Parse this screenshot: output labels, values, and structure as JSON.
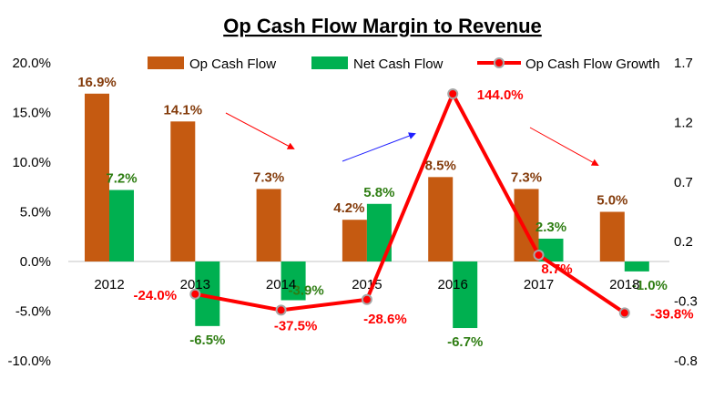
{
  "chart_data": {
    "type": "bar",
    "title": "Op Cash Flow Margin to Revenue",
    "categories": [
      "2012",
      "2013",
      "2014",
      "2015",
      "2016",
      "2017",
      "2018"
    ],
    "series": [
      {
        "name": "Op Cash Flow",
        "type": "bar",
        "axis": "left",
        "color": "#C55A11",
        "label_color": "#843C0C",
        "values": [
          16.9,
          14.1,
          7.3,
          4.2,
          8.5,
          7.3,
          5.0
        ],
        "labels": [
          "16.9%",
          "14.1%",
          "7.3%",
          "4.2%",
          "8.5%",
          "7.3%",
          "5.0%"
        ]
      },
      {
        "name": "Net Cash Flow",
        "type": "bar",
        "axis": "left",
        "color": "#00B050",
        "label_color": "#2E7D12",
        "values": [
          7.2,
          -6.5,
          -3.9,
          5.8,
          -6.7,
          2.3,
          -1.0
        ],
        "labels": [
          "7.2%",
          "-6.5%",
          "-3.9%",
          "5.8%",
          "-6.7%",
          "2.3%",
          "-1.0%"
        ]
      },
      {
        "name": "Op Cash Flow Growth",
        "type": "line",
        "axis": "right",
        "color": "#FF0000",
        "marker_color": "#A6A6A6",
        "values": [
          null,
          -0.24,
          -0.375,
          -0.286,
          1.44,
          0.087,
          -0.398
        ],
        "labels": [
          "",
          "-24.0%",
          "-37.5%",
          "-28.6%",
          "144.0%",
          "8.7%",
          "-39.8%"
        ]
      }
    ],
    "y_left": {
      "ylim": [
        -10,
        20
      ],
      "ticks": [
        "20.0%",
        "15.0%",
        "10.0%",
        "5.0%",
        "0.0%",
        "-5.0%",
        "-10.0%"
      ],
      "tick_values": [
        20,
        15,
        10,
        5,
        0,
        -5,
        -10
      ]
    },
    "y_right": {
      "ylim": [
        -0.8,
        1.7
      ],
      "ticks": [
        "1.7",
        "1.2",
        "0.7",
        "0.2",
        "-0.3",
        "-0.8"
      ],
      "tick_values": [
        1.7,
        1.2,
        0.7,
        0.2,
        -0.3,
        -0.8
      ]
    },
    "legend_position": "top",
    "grid": false
  }
}
